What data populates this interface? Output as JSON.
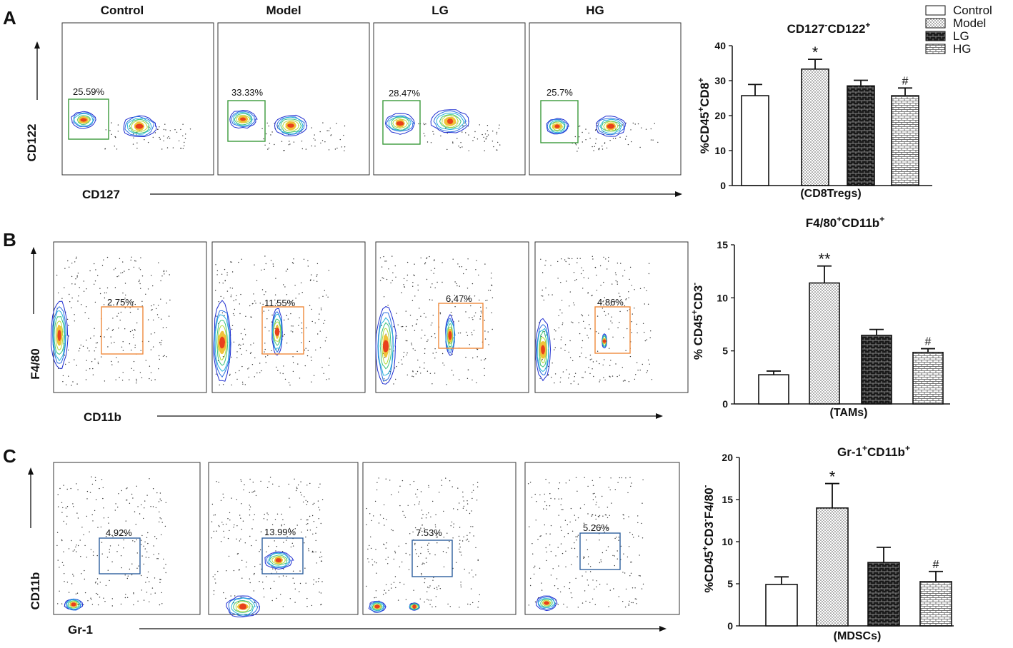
{
  "panel_letters": [
    "A",
    "B",
    "C"
  ],
  "column_titles": [
    "Control",
    "Model",
    "LG",
    "HG"
  ],
  "flow": [
    {
      "panel": "A",
      "y_marker": "CD122",
      "x_marker": "CD127",
      "gate_color": "#3a9a3a",
      "percentages": [
        "25.59%",
        "33.33%",
        "28.47%",
        "25.7%"
      ]
    },
    {
      "panel": "B",
      "y_marker": "F4/80",
      "x_marker": "CD11b",
      "gate_color": "#f08a3c",
      "percentages": [
        "2.75%",
        "11.55%",
        "6.47%",
        "4.86%"
      ]
    },
    {
      "panel": "C",
      "y_marker": "CD11b",
      "x_marker": "Gr-1",
      "gate_color": "#2d5f9e",
      "percentages": [
        "4.92%",
        "13.99%",
        "7.53%",
        "5.26%"
      ]
    }
  ],
  "legend": {
    "labels": [
      "Control",
      "Model",
      "LG",
      "HG"
    ]
  },
  "chart_data": [
    {
      "type": "bar",
      "title_parts": {
        "a": "CD127",
        "a_sup": "-",
        "b": "CD122",
        "b_sup": "+"
      },
      "ylabel_parts": {
        "a": "%CD45",
        "a_sup": "+",
        "b": "CD8",
        "b_sup": "+"
      },
      "xlabel": "(CD8Tregs)",
      "categories": [
        "Control",
        "Model",
        "LG",
        "HG"
      ],
      "values": [
        25.7,
        33.3,
        28.5,
        25.7
      ],
      "errors": [
        3.2,
        2.8,
        1.6,
        2.2
      ],
      "significance": [
        "",
        "*",
        "",
        "#"
      ],
      "ylim": [
        0,
        40
      ],
      "yticks": [
        0,
        10,
        20,
        30,
        40
      ]
    },
    {
      "type": "bar",
      "title_parts": {
        "a": "F4/80",
        "a_sup": "+",
        "b": "CD11b",
        "b_sup": "+"
      },
      "ylabel_parts": {
        "a": "% CD45",
        "a_sup": "+",
        "b": "CD3",
        "b_sup": "-"
      },
      "xlabel": "(TAMs)",
      "categories": [
        "Control",
        "Model",
        "LG",
        "HG"
      ],
      "values": [
        2.75,
        11.4,
        6.47,
        4.86
      ],
      "errors": [
        0.35,
        1.6,
        0.55,
        0.35
      ],
      "significance": [
        "",
        "**",
        "",
        "#"
      ],
      "ylim": [
        0,
        15
      ],
      "yticks": [
        0,
        5,
        10,
        15
      ]
    },
    {
      "type": "bar",
      "title_parts": {
        "a": "Gr-1",
        "a_sup": "+",
        "b": "CD11b",
        "b_sup": "+"
      },
      "ylabel_parts": {
        "a": "%CD45",
        "a_sup": "+",
        "b": "CD3",
        "b_sup": "-",
        "c": "F4/80",
        "c_sup": "-"
      },
      "xlabel": "(MDSCs)",
      "categories": [
        "Control",
        "Model",
        "LG",
        "HG"
      ],
      "values": [
        4.92,
        14.0,
        7.53,
        5.26
      ],
      "errors": [
        0.9,
        2.9,
        1.8,
        1.2
      ],
      "significance": [
        "",
        "*",
        "",
        "#"
      ],
      "ylim": [
        0,
        20
      ],
      "yticks": [
        0,
        5,
        10,
        15,
        20
      ]
    }
  ]
}
